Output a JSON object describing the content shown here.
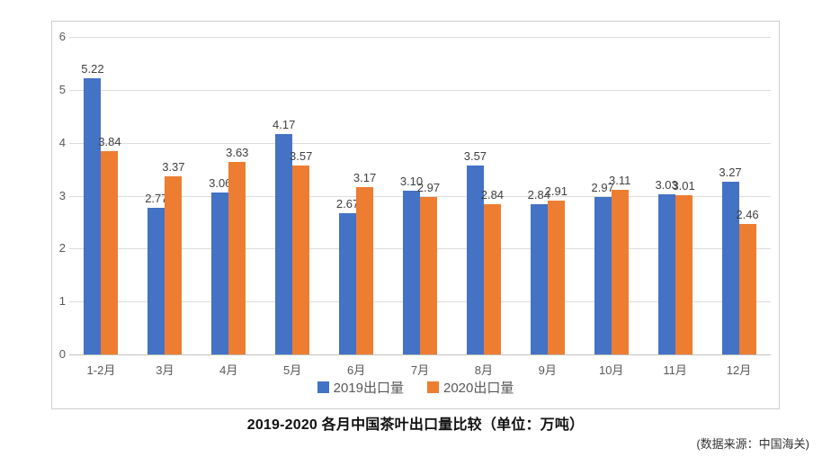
{
  "chart_data": {
    "type": "bar",
    "title": "2019-2020 各月中国茶叶出口量比较（单位：万吨）",
    "source_note": "(数据来源：中国海关)",
    "categories": [
      "1-2月",
      "3月",
      "4月",
      "5月",
      "6月",
      "7月",
      "8月",
      "9月",
      "10月",
      "11月",
      "12月"
    ],
    "series": [
      {
        "name": "2019出口量",
        "color": "#4472C4",
        "values": [
          5.22,
          2.77,
          3.06,
          4.17,
          2.67,
          3.1,
          3.57,
          2.84,
          2.97,
          3.03,
          3.27
        ]
      },
      {
        "name": "2020出口量",
        "color": "#ED7D31",
        "values": [
          3.84,
          3.37,
          3.63,
          3.57,
          3.17,
          2.97,
          2.84,
          2.91,
          3.11,
          3.01,
          2.46
        ]
      }
    ],
    "ylim": [
      0,
      6
    ],
    "yticks": [
      0,
      1,
      2,
      3,
      4,
      5,
      6
    ],
    "value_label_decimals": 2,
    "grid": "horizontal",
    "legend_position": "bottom-inside",
    "colors": {
      "gridline": "#dcdcdc",
      "axis_line": "#bfbfbf",
      "frame_border": "#cfcfcf",
      "tick_text": "#595959",
      "value_text": "#404040",
      "legend_text": "#595959",
      "title_text": "#111111",
      "source_text": "#333333"
    }
  }
}
